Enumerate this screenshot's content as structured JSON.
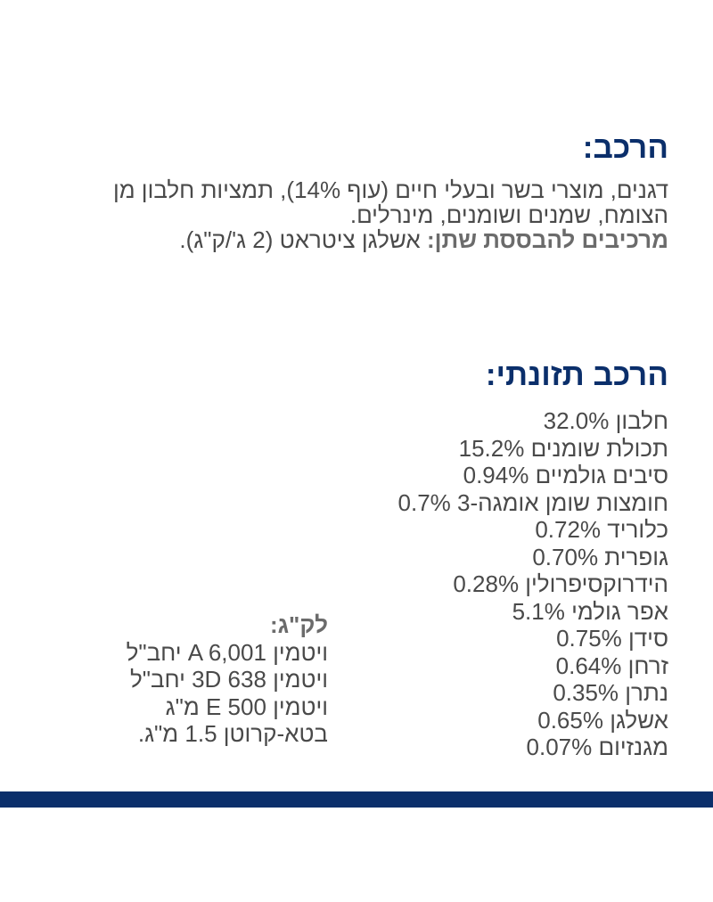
{
  "composition": {
    "heading": "הרכב:",
    "line1": "דגנים, מוצרי בשר ובעלי חיים (עוף 14%), תמציות חלבון מן",
    "line2": "הצומח, שמנים ושומנים, מינרלים.",
    "additives_label": "מרכיבים להבססת שתן:",
    "additives_text": " אשלגן ציטראט (2 ג'/ק\"ג)."
  },
  "nutrition": {
    "heading": "הרכב תזונתי:",
    "items": [
      "חלבון 32.0%",
      "תכולת שומנים 15.2%",
      "סיבים גולמיים 0.94%",
      "חומצות שומן אומגה-3 0.7%",
      "כלוריד 0.72%",
      "גופרית 0.70%",
      "הידרוקסיפרולין 0.28%",
      "אפר גולמי 5.1%",
      "סידן 0.75%",
      "זרחן 0.64%",
      "נתרן 0.35%",
      "אשלגן 0.65%",
      "מגנזיום 0.07%"
    ]
  },
  "per_kg": {
    "label": "לק\"ג:",
    "items": [
      "ויטמין A 6,001 יחב\"ל",
      "ויטמין 3D 638 יחב\"ל",
      "ויטמין E 500 מ\"ג",
      "בטא-קרוטן 1.5 מ\"ג."
    ]
  },
  "colors": {
    "heading": "#0b2f6b",
    "body_text": "#4a4a4a",
    "footer_bar": "#0b2f6b"
  }
}
